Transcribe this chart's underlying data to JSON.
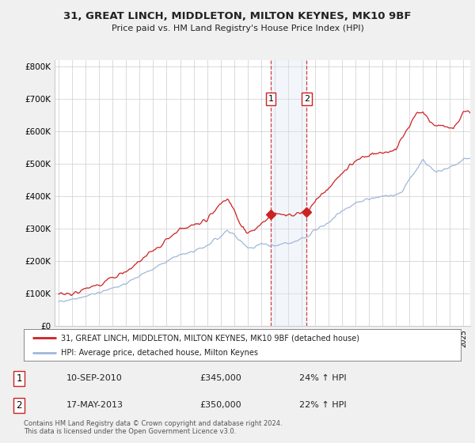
{
  "title": "31, GREAT LINCH, MIDDLETON, MILTON KEYNES, MK10 9BF",
  "subtitle": "Price paid vs. HM Land Registry's House Price Index (HPI)",
  "legend_line1": "31, GREAT LINCH, MIDDLETON, MILTON KEYNES, MK10 9BF (detached house)",
  "legend_line2": "HPI: Average price, detached house, Milton Keynes",
  "transaction1_date": "10-SEP-2010",
  "transaction1_price": "£345,000",
  "transaction1_hpi": "24% ↑ HPI",
  "transaction2_date": "17-MAY-2013",
  "transaction2_price": "£350,000",
  "transaction2_hpi": "22% ↑ HPI",
  "footer": "Contains HM Land Registry data © Crown copyright and database right 2024.\nThis data is licensed under the Open Government Licence v3.0.",
  "hpi_color": "#a0b8d8",
  "price_color": "#cc2222",
  "shade_color": "#dce8f5",
  "vline_color": "#cc2222",
  "bg_color": "#f0f0f0",
  "plot_bg_color": "#ffffff",
  "grid_color": "#cccccc",
  "transaction1_year": 2010.708,
  "transaction2_year": 2013.375,
  "ylim": [
    0,
    820000
  ],
  "yticks": [
    0,
    100000,
    200000,
    300000,
    400000,
    500000,
    600000,
    700000,
    800000
  ],
  "ytick_labels": [
    "£0",
    "£100K",
    "£200K",
    "£300K",
    "£400K",
    "£500K",
    "£600K",
    "£700K",
    "£800K"
  ]
}
